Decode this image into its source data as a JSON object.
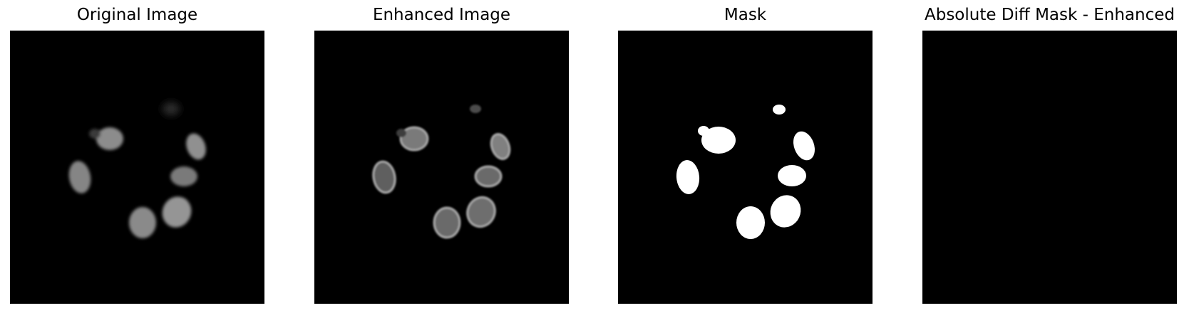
{
  "panels": [
    {
      "title": "Original Image",
      "kind": "original"
    },
    {
      "title": "Enhanced Image",
      "kind": "enhanced"
    },
    {
      "title": "Mask",
      "kind": "mask"
    },
    {
      "title": "Absolute Diff Mask - Enhanced",
      "kind": "diff"
    }
  ],
  "colors": {
    "background": "#000000",
    "mask_fill": "#ffffff"
  }
}
